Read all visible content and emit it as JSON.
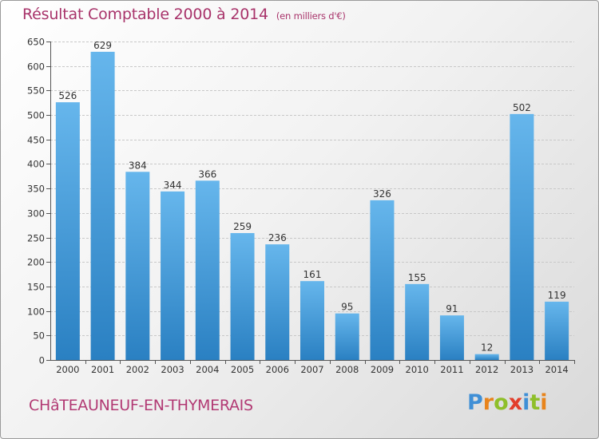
{
  "chart_data": {
    "type": "bar",
    "title": "Résultat Comptable 2000 à 2014",
    "subtitle": "(en milliers d'€)",
    "categories": [
      "2000",
      "2001",
      "2002",
      "2003",
      "2004",
      "2005",
      "2006",
      "2007",
      "2008",
      "2009",
      "2010",
      "2011",
      "2012",
      "2013",
      "2014"
    ],
    "values": [
      526,
      629,
      384,
      344,
      366,
      259,
      236,
      161,
      95,
      326,
      155,
      91,
      12,
      502,
      119
    ],
    "ylim": [
      0,
      650
    ],
    "yticks": [
      0,
      50,
      100,
      150,
      200,
      250,
      300,
      350,
      400,
      450,
      500,
      550,
      600,
      650
    ],
    "grid": true,
    "xlabel": "",
    "ylabel": ""
  },
  "footer": {
    "commune": "CHâTEAUNEUF-EN-THYMERAIS",
    "logo_letters": [
      "P",
      "r",
      "o",
      "x",
      "i",
      "t",
      "i"
    ]
  },
  "colors": {
    "bar_top": "#66b6ec",
    "bar_bottom": "#2a80c2",
    "title": "#a8336a",
    "logo": [
      "#3f8fd6",
      "#e8841c",
      "#8fbf2a",
      "#e23e2b",
      "#3f8fd6",
      "#8fbf2a",
      "#e8841c"
    ]
  }
}
